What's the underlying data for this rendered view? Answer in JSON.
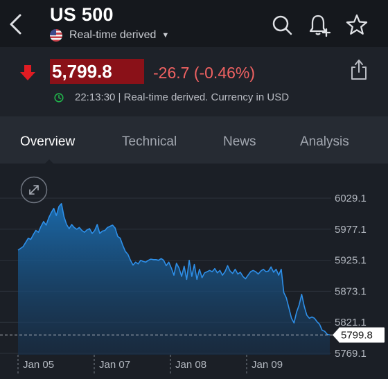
{
  "header": {
    "title": "US 500",
    "subtitle": "Real-time derived",
    "icons": {
      "back": "back-icon",
      "search": "search-icon",
      "alert": "add-alert-icon",
      "favorite": "star-icon"
    }
  },
  "quote": {
    "price": "5,799.8",
    "change": "-26.7 (-0.46%)",
    "time_info": "22:13:30 | Real-time derived. Currency in USD",
    "direction": "down",
    "colors": {
      "negative": "#f06262",
      "price_bg": "#8a1118",
      "positive": "#21b24b"
    }
  },
  "tabs": [
    {
      "label": "Overview",
      "active": true
    },
    {
      "label": "Technical",
      "active": false
    },
    {
      "label": "News",
      "active": false
    },
    {
      "label": "Analysis",
      "active": false
    }
  ],
  "chart_data": {
    "type": "area",
    "x_tick_labels": [
      "Jan 05",
      "Jan 07",
      "Jan 08",
      "Jan 09"
    ],
    "y_tick_labels": [
      "6029.1",
      "5977.1",
      "5925.1",
      "5873.1",
      "5821.1",
      "5769.1"
    ],
    "ylim": [
      5769.1,
      6029.1
    ],
    "current_value": "5799.8",
    "line_color": "#2e8fe8",
    "series": [
      {
        "values": [
          5942,
          5945,
          5948,
          5955,
          5962,
          5960,
          5968,
          5975,
          5972,
          5982,
          5990,
          5984,
          5996,
          6005,
          6012,
          6000,
          6015,
          6020,
          5998,
          5985,
          5978,
          5985,
          5980,
          5977,
          5980,
          5975,
          5972,
          5976,
          5978,
          5970,
          5975,
          5985,
          5970,
          5974,
          5975,
          5980,
          5982,
          5984,
          5979,
          5965,
          5962,
          5950,
          5940,
          5935,
          5925,
          5917,
          5922,
          5919,
          5925,
          5923,
          5922,
          5925,
          5927,
          5926,
          5926,
          5925,
          5928,
          5925,
          5916,
          5922,
          5912,
          5900,
          5920,
          5912,
          5898,
          5915,
          5893,
          5925,
          5898,
          5918,
          5893,
          5910,
          5896,
          5904,
          5906,
          5908,
          5906,
          5911,
          5904,
          5908,
          5900,
          5906,
          5916,
          5907,
          5903,
          5910,
          5902,
          5905,
          5898,
          5894,
          5900,
          5906,
          5908,
          5906,
          5902,
          5907,
          5910,
          5906,
          5907,
          5914,
          5905,
          5910,
          5900,
          5910,
          5871,
          5862,
          5845,
          5828,
          5820,
          5838,
          5850,
          5868,
          5848,
          5833,
          5828,
          5830,
          5828,
          5822,
          5818,
          5808,
          5806,
          5801,
          5800
        ]
      }
    ]
  }
}
